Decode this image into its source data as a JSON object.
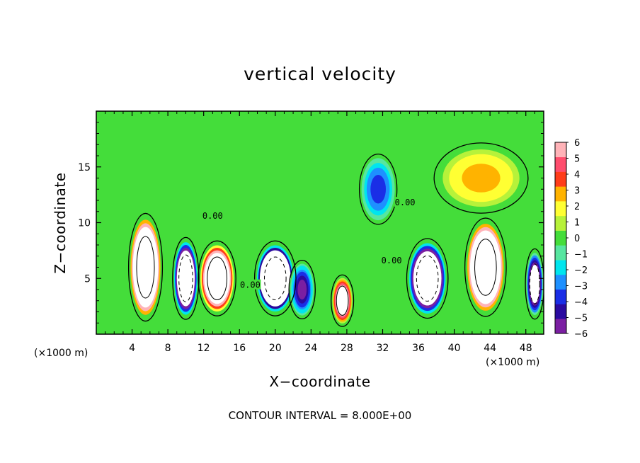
{
  "chart_data": {
    "type": "heatmap",
    "title": "vertical velocity",
    "xlabel": "X−coordinate",
    "ylabel": "Z−coordinate",
    "x_unit_label": "(×1000 m)",
    "y_unit_label": "(×1000 m)",
    "footer": "CONTOUR INTERVAL = 8.000E+00",
    "xlim": [
      0,
      50
    ],
    "ylim": [
      0,
      20
    ],
    "x_ticks": [
      4,
      8,
      12,
      16,
      20,
      24,
      28,
      32,
      36,
      40,
      44,
      48
    ],
    "x_tick_labels": [
      "4",
      "8",
      "12",
      "16",
      "20",
      "24",
      "28",
      "32",
      "36",
      "40",
      "44",
      "48"
    ],
    "y_ticks": [
      5,
      10,
      15
    ],
    "y_tick_labels": [
      "5",
      "10",
      "15"
    ],
    "colorbar": {
      "range": [
        -6,
        6
      ],
      "tick_values": [
        6,
        5,
        4,
        3,
        2,
        1,
        0,
        -1,
        -2,
        -3,
        -4,
        -5,
        -6
      ],
      "tick_labels": [
        "6",
        "5",
        "4",
        "3",
        "2",
        "1",
        "0",
        "−1",
        "−2",
        "−3",
        "−4",
        "−5",
        "−6"
      ],
      "colors": [
        "#7b1fa2",
        "#2a0aa0",
        "#1a2ee6",
        "#1e90ff",
        "#00e5ee",
        "#57e6a0",
        "#44dd3a",
        "#b7f23a",
        "#ffff33",
        "#ffb300",
        "#ff3d1a",
        "#ff4d6d",
        "#ffb3b8"
      ]
    },
    "background_value": 0,
    "features": [
      {
        "sign": "up",
        "x_center": 5.5,
        "z_center": 6.0,
        "x_half_width": 1.8,
        "z_half_height": 4.6,
        "peak": 20
      },
      {
        "sign": "down",
        "x_center": 10.0,
        "z_center": 5.0,
        "x_half_width": 1.4,
        "z_half_height": 3.5,
        "peak": -14
      },
      {
        "sign": "up",
        "x_center": 13.5,
        "z_center": 5.0,
        "x_half_width": 2.0,
        "z_half_height": 3.2,
        "peak": 14
      },
      {
        "sign": "down",
        "x_center": 20.0,
        "z_center": 5.0,
        "x_half_width": 2.2,
        "z_half_height": 3.2,
        "peak": -16
      },
      {
        "sign": "down",
        "x_center": 23.0,
        "z_center": 4.0,
        "x_half_width": 1.4,
        "z_half_height": 2.5,
        "peak": -6
      },
      {
        "sign": "up",
        "x_center": 27.5,
        "z_center": 3.0,
        "x_half_width": 1.2,
        "z_half_height": 2.2,
        "peak": 10
      },
      {
        "sign": "down",
        "x_center": 31.5,
        "z_center": 13.0,
        "x_half_width": 2.0,
        "z_half_height": 3.0,
        "peak": -4
      },
      {
        "sign": "down",
        "x_center": 37.0,
        "z_center": 5.0,
        "x_half_width": 2.2,
        "z_half_height": 3.4,
        "peak": -15
      },
      {
        "sign": "up",
        "x_center": 43.5,
        "z_center": 6.0,
        "x_half_width": 2.2,
        "z_half_height": 4.2,
        "peak": 20
      },
      {
        "sign": "down",
        "x_center": 49.0,
        "z_center": 4.5,
        "x_half_width": 1.0,
        "z_half_height": 3.0,
        "peak": -10
      },
      {
        "sign": "up",
        "x_center": 43.0,
        "z_center": 14.0,
        "x_half_width": 5.0,
        "z_half_height": 3.0,
        "peak": 3
      }
    ],
    "contour_labels": [
      {
        "text": "0.00",
        "x": 13.0,
        "z": 10.6
      },
      {
        "text": "0.00",
        "x": 17.2,
        "z": 4.4
      },
      {
        "text": "0.00",
        "x": 33.0,
        "z": 6.6
      },
      {
        "text": "0.00",
        "x": 34.5,
        "z": 11.8
      }
    ]
  }
}
